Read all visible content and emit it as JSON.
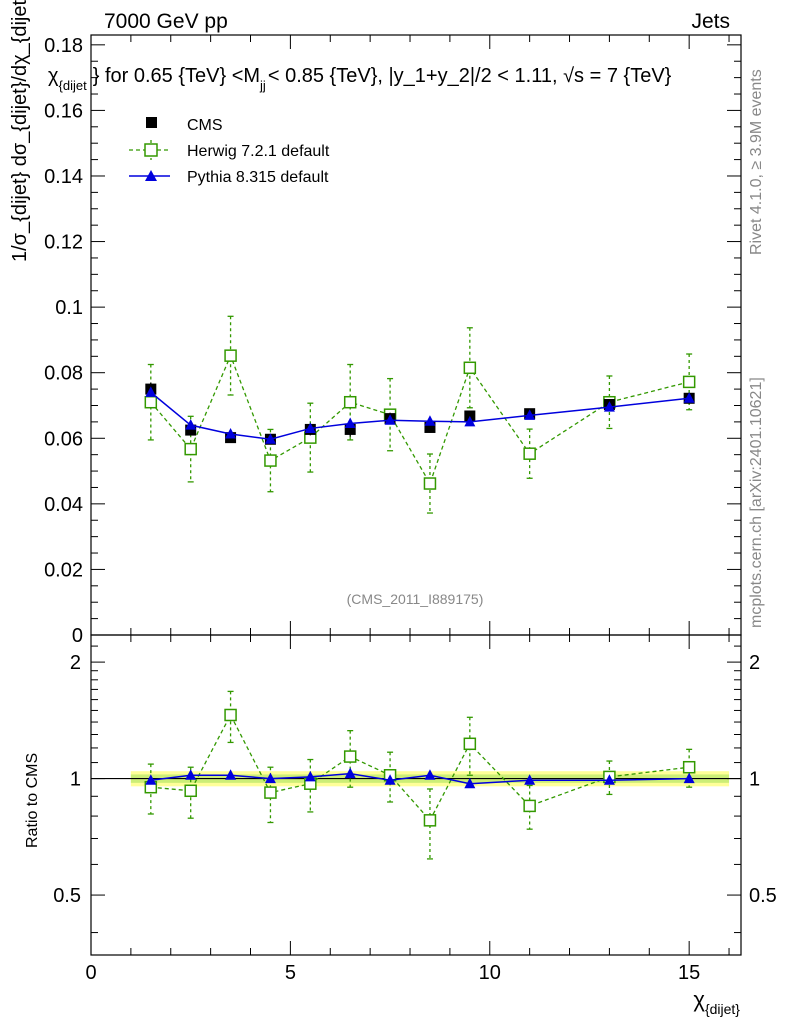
{
  "header": {
    "left": "7000 GeV pp",
    "right": "Jets"
  },
  "title": "} for 0.65 {TeV} <M",
  "title_sub": "jj",
  "title_rest": "< 0.85 {TeV}, |y_1+y_2|/2 < 1.11, √s = 7 {TeV}",
  "title_prefix_sym": "χ",
  "title_prefix_sub": "{dijet",
  "side_labels": {
    "rivet": "Rivet 4.1.0, ≥ 3.9M events",
    "mcplots": "mcplots.cern.ch [arXiv:2401.10621]"
  },
  "watermark": "(CMS_2011_I889175)",
  "colors": {
    "cms": "#000000",
    "herwig": "#339900",
    "pythia": "#0000dd",
    "band_inner": "#ccee77",
    "band_outer": "#ffff99"
  },
  "chart_data": [
    {
      "type": "scatter",
      "panel": "main",
      "ylabel": "1/σ_{dijet} dσ_{dijet}/dχ_{dijet}",
      "ylim": [
        0,
        0.183
      ],
      "xlim": [
        0,
        16.3
      ],
      "yticks": [
        "0",
        "0.02",
        "0.04",
        "0.06",
        "0.08",
        "0.1",
        "0.12",
        "0.14",
        "0.16",
        "0.18"
      ],
      "legend_position": "top-left",
      "series": [
        {
          "name": "CMS",
          "style": "black-square",
          "x": [
            1.5,
            2.5,
            3.5,
            4.5,
            5.5,
            6.5,
            7.5,
            8.5,
            9.5,
            11,
            13,
            15
          ],
          "values": [
            0.075,
            0.0625,
            0.0602,
            0.0597,
            0.0627,
            0.0627,
            0.066,
            0.0633,
            0.0668,
            0.0675,
            0.0703,
            0.0722
          ],
          "err": [
            0.002,
            0.0015,
            0.0015,
            0.0015,
            0.0018,
            0.0022,
            0.0018,
            0.0016,
            0.0016,
            0.0012,
            0.001,
            0.0012
          ]
        },
        {
          "name": "Herwig 7.2.1 default",
          "style": "green-open-square-dashed",
          "x": [
            1.5,
            2.5,
            3.5,
            4.5,
            5.5,
            6.5,
            7.5,
            8.5,
            9.5,
            11,
            13,
            15
          ],
          "values": [
            0.071,
            0.0567,
            0.0852,
            0.0532,
            0.0602,
            0.071,
            0.0672,
            0.0462,
            0.0815,
            0.0553,
            0.071,
            0.0772
          ],
          "err": [
            0.0115,
            0.01,
            0.012,
            0.0095,
            0.0105,
            0.0115,
            0.011,
            0.009,
            0.0122,
            0.0075,
            0.008,
            0.0085
          ]
        },
        {
          "name": "Pythia 8.315 default",
          "style": "blue-triangle-solid",
          "x": [
            1.5,
            2.5,
            3.5,
            4.5,
            5.5,
            6.5,
            7.5,
            8.5,
            9.5,
            11,
            13,
            15
          ],
          "values": [
            0.074,
            0.064,
            0.0613,
            0.0597,
            0.063,
            0.0645,
            0.0655,
            0.0652,
            0.065,
            0.067,
            0.0695,
            0.0722
          ],
          "err": [
            0.001,
            0.001,
            0.001,
            0.001,
            0.001,
            0.001,
            0.001,
            0.001,
            0.001,
            0.0008,
            0.0008,
            0.0008
          ]
        }
      ]
    },
    {
      "type": "scatter",
      "panel": "ratio",
      "ylabel": "Ratio to CMS",
      "ylim": [
        0.35,
        2.35
      ],
      "xlim": [
        0,
        16.3
      ],
      "yticks": [
        "0.5",
        "1",
        "2"
      ],
      "xticks": [
        "0",
        "5",
        "10",
        "15"
      ],
      "xlabel": "χ_{dijet}",
      "xlabel_main": "χ",
      "xlabel_sub": "{dijet}",
      "series": [
        {
          "name": "Herwig 7.2.1 default",
          "x": [
            1.5,
            2.5,
            3.5,
            4.5,
            5.5,
            6.5,
            7.5,
            8.5,
            9.5,
            11,
            13,
            15
          ],
          "values": [
            0.95,
            0.93,
            1.46,
            0.92,
            0.97,
            1.14,
            1.02,
            0.78,
            1.23,
            0.85,
            1.01,
            1.07
          ],
          "err": [
            0.14,
            0.14,
            0.22,
            0.15,
            0.15,
            0.19,
            0.15,
            0.16,
            0.21,
            0.11,
            0.1,
            0.12
          ]
        },
        {
          "name": "Pythia 8.315 default",
          "x": [
            1.5,
            2.5,
            3.5,
            4.5,
            5.5,
            6.5,
            7.5,
            8.5,
            9.5,
            11,
            13,
            15
          ],
          "values": [
            0.99,
            1.02,
            1.02,
            1.0,
            1.01,
            1.03,
            0.99,
            1.02,
            0.97,
            0.99,
            0.99,
            1.0
          ],
          "err": [
            0.01,
            0.01,
            0.01,
            0.01,
            0.01,
            0.01,
            0.01,
            0.01,
            0.01,
            0.01,
            0.01,
            0.01
          ]
        }
      ],
      "band": {
        "x": [
          1.0,
          16.0
        ],
        "inner": 0.025,
        "outer": 0.045
      }
    }
  ]
}
